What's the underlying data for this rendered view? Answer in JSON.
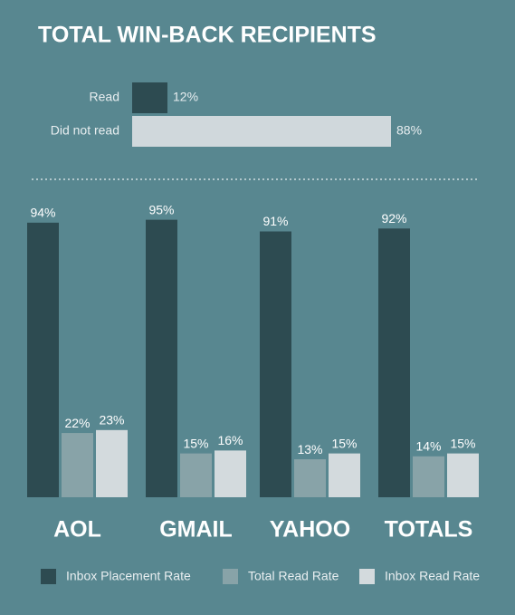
{
  "chart_data": [
    {
      "type": "hbar",
      "title": "TOTAL WIN-BACK RECIPIENTS",
      "categories": [
        "Read",
        "Did not read"
      ],
      "values": [
        12,
        88
      ],
      "value_labels": [
        "12%",
        "88%"
      ],
      "colors": [
        "#2d4b51",
        "#d0d8dc"
      ]
    },
    {
      "type": "grouped-bar",
      "categories": [
        "AOL",
        "GMAIL",
        "YAHOO",
        "TOTALS"
      ],
      "series": [
        {
          "name": "Inbox Placement Rate",
          "color": "#2d4b51",
          "values": [
            94,
            95,
            91,
            92
          ],
          "value_labels": [
            "94%",
            "95%",
            "91%",
            "92%"
          ]
        },
        {
          "name": "Total Read Rate",
          "color": "#88a3a8",
          "values": [
            22,
            15,
            13,
            14
          ],
          "value_labels": [
            "22%",
            "15%",
            "13%",
            "14%"
          ]
        },
        {
          "name": "Inbox Read Rate",
          "color": "#d3dadd",
          "values": [
            23,
            16,
            15,
            15
          ],
          "value_labels": [
            "23%",
            "16%",
            "15%",
            "15%"
          ]
        }
      ]
    }
  ]
}
